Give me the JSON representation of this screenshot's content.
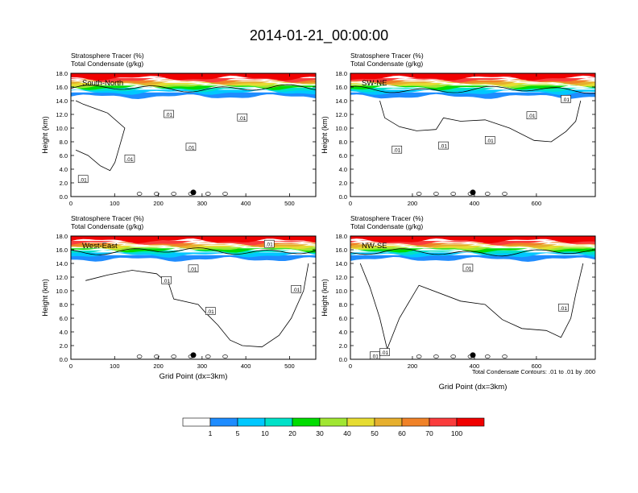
{
  "figure": {
    "title": "2014-01-21_00:00:00",
    "footnote": "Total Condensate Contours: .01 to .01 by .000"
  },
  "chart_data": [
    {
      "type": "contour",
      "panel": "top-left",
      "label": "South-North",
      "title_line1": "Stratosphere Tracer   (%)",
      "title_line2": "Total Condensate   (g/kg)",
      "ylabel": "Height (km)",
      "xlabel": "",
      "ylim": [
        0,
        18
      ],
      "yticks": [
        "0.0",
        "2.0",
        "4.0",
        "6.0",
        "8.0",
        "10.0",
        "12.0",
        "14.0",
        "16.0",
        "18.0"
      ],
      "xlim": [
        0,
        560
      ],
      "xticks": [
        "0",
        "100",
        "200",
        "300",
        "400",
        "500"
      ],
      "xtick_values": [
        0,
        100,
        200,
        300,
        400,
        500
      ],
      "contour_labels": [
        ".01",
        ".01",
        ".01",
        ".01",
        ".01"
      ],
      "marker_x": 280,
      "tropopause_km": 15.8
    },
    {
      "type": "contour",
      "panel": "top-right",
      "label": "SW-NE",
      "title_line1": "Stratosphere Tracer   (%)",
      "title_line2": "Total Condensate   (g/kg)",
      "ylabel": "Height (km)",
      "xlabel": "",
      "ylim": [
        0,
        18
      ],
      "yticks": [
        "0.0",
        "2.0",
        "4.0",
        "6.0",
        "8.0",
        "10.0",
        "12.0",
        "14.0",
        "16.0",
        "18.0"
      ],
      "xlim": [
        0,
        790
      ],
      "xticks": [
        "0",
        "200",
        "400",
        "600"
      ],
      "xtick_values": [
        0,
        200,
        400,
        600
      ],
      "contour_labels": [
        ".01",
        ".01",
        ".01",
        ".01",
        ".01"
      ],
      "marker_x": 395,
      "tropopause_km": 15.6
    },
    {
      "type": "contour",
      "panel": "bottom-left",
      "label": "West-East",
      "title_line1": "Stratosphere Tracer   (%)",
      "title_line2": "Total Condensate   (g/kg)",
      "ylabel": "Height (km)",
      "xlabel": "Grid Point (dx=3km)",
      "ylim": [
        0,
        18
      ],
      "yticks": [
        "0.0",
        "2.0",
        "4.0",
        "6.0",
        "8.0",
        "10.0",
        "12.0",
        "14.0",
        "16.0",
        "18.0"
      ],
      "xlim": [
        0,
        560
      ],
      "xticks": [
        "0",
        "100",
        "200",
        "300",
        "400",
        "500"
      ],
      "xtick_values": [
        0,
        100,
        200,
        300,
        400,
        500
      ],
      "contour_labels": [
        ".01",
        ".01",
        ".01",
        ".01",
        ".01"
      ],
      "marker_x": 280,
      "tropopause_km": 15.8
    },
    {
      "type": "contour",
      "panel": "bottom-right",
      "label": "NW-SE",
      "title_line1": "Stratosphere Tracer   (%)",
      "title_line2": "Total Condensate   (g/kg)",
      "ylabel": "Height (km)",
      "xlabel": "Grid Point (dx=3km)",
      "ylim": [
        0,
        18
      ],
      "yticks": [
        "0.0",
        "2.0",
        "4.0",
        "6.0",
        "8.0",
        "10.0",
        "12.0",
        "14.0",
        "16.0",
        "18.0"
      ],
      "xlim": [
        0,
        790
      ],
      "xticks": [
        "0",
        "200",
        "400",
        "600"
      ],
      "xtick_values": [
        0,
        200,
        400,
        600
      ],
      "contour_labels": [
        ".01",
        ".01",
        ".01",
        ".01"
      ],
      "marker_x": 395,
      "tropopause_km": 15.6
    }
  ],
  "colorbar": {
    "labels": [
      "1",
      "5",
      "10",
      "20",
      "30",
      "40",
      "50",
      "60",
      "70",
      "100"
    ],
    "colors": [
      "#ffffff",
      "#1e8cff",
      "#00c8ff",
      "#00e1c8",
      "#00dc00",
      "#a0e632",
      "#e6dc32",
      "#e6af2d",
      "#f08228",
      "#fa3c3c",
      "#f00000"
    ]
  }
}
